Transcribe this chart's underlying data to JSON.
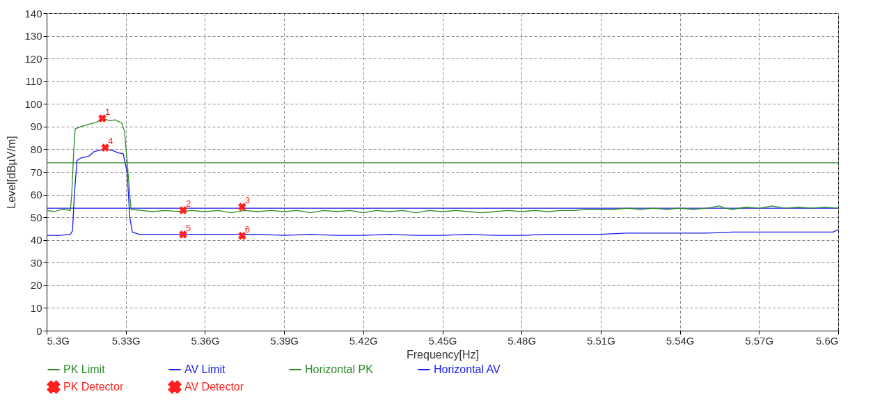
{
  "chart_data": {
    "type": "line",
    "xlabel": "Frequency[Hz]",
    "ylabel": "Level[dBµV/m]",
    "xlim": [
      5.3,
      5.6
    ],
    "ylim": [
      0,
      140
    ],
    "xticks": [
      {
        "value": 5.3,
        "label": "5.3G"
      },
      {
        "value": 5.33,
        "label": "5.33G"
      },
      {
        "value": 5.36,
        "label": "5.36G"
      },
      {
        "value": 5.39,
        "label": "5.39G"
      },
      {
        "value": 5.42,
        "label": "5.42G"
      },
      {
        "value": 5.45,
        "label": "5.45G"
      },
      {
        "value": 5.48,
        "label": "5.48G"
      },
      {
        "value": 5.51,
        "label": "5.51G"
      },
      {
        "value": 5.54,
        "label": "5.54G"
      },
      {
        "value": 5.57,
        "label": "5.57G"
      },
      {
        "value": 5.6,
        "label": "5.6G"
      }
    ],
    "yticks": [
      0,
      10,
      20,
      30,
      40,
      50,
      60,
      70,
      80,
      90,
      100,
      110,
      120,
      130,
      140
    ],
    "grid": true,
    "legend": "bottom",
    "series": [
      {
        "name": "PK Limit",
        "color": "#2a8a2a",
        "x": [
          5.3,
          5.6
        ],
        "values": [
          74,
          74
        ]
      },
      {
        "name": "AV Limit",
        "color": "#1a1aee",
        "x": [
          5.3,
          5.6
        ],
        "values": [
          54,
          54
        ]
      },
      {
        "name": "Horizontal PK",
        "color": "#2a8a2a",
        "x": [
          5.3,
          5.303,
          5.306,
          5.309,
          5.3095,
          5.3103,
          5.3108,
          5.313,
          5.316,
          5.319,
          5.3215,
          5.324,
          5.326,
          5.3285,
          5.3295,
          5.3305,
          5.3315,
          5.332,
          5.336,
          5.34,
          5.345,
          5.35,
          5.355,
          5.36,
          5.365,
          5.37,
          5.375,
          5.38,
          5.385,
          5.39,
          5.395,
          5.4,
          5.405,
          5.41,
          5.415,
          5.42,
          5.425,
          5.43,
          5.435,
          5.44,
          5.445,
          5.45,
          5.455,
          5.46,
          5.465,
          5.47,
          5.475,
          5.48,
          5.485,
          5.49,
          5.495,
          5.5,
          5.505,
          5.51,
          5.515,
          5.52,
          5.525,
          5.53,
          5.535,
          5.54,
          5.545,
          5.55,
          5.555,
          5.557,
          5.56,
          5.565,
          5.57,
          5.575,
          5.58,
          5.585,
          5.59,
          5.595,
          5.6
        ],
        "values": [
          53,
          52.5,
          53.5,
          53,
          60,
          80,
          89,
          90,
          91,
          92,
          93.5,
          92.5,
          93,
          91.5,
          88,
          75,
          60,
          53.5,
          53,
          52.5,
          53,
          52.5,
          53,
          52.5,
          53,
          52,
          53,
          52.5,
          53,
          52.5,
          53,
          52,
          53,
          52.5,
          53,
          52,
          53,
          52.5,
          53,
          52,
          53,
          52.5,
          53,
          52.5,
          52,
          52.5,
          53,
          52.5,
          53,
          52.5,
          53,
          53,
          53.5,
          53.5,
          53.5,
          54,
          53.5,
          54,
          53.5,
          54,
          53.5,
          54,
          55,
          54,
          53.5,
          54.5,
          54,
          55,
          54,
          54.5,
          54,
          54.5,
          54
        ]
      },
      {
        "name": "Horizontal AV",
        "color": "#1a1aee",
        "x": [
          5.3,
          5.305,
          5.309,
          5.3098,
          5.3105,
          5.3115,
          5.3127,
          5.316,
          5.318,
          5.322,
          5.325,
          5.327,
          5.329,
          5.3305,
          5.3315,
          5.3325,
          5.335,
          5.34,
          5.35,
          5.36,
          5.37,
          5.38,
          5.39,
          5.4,
          5.41,
          5.42,
          5.43,
          5.44,
          5.45,
          5.46,
          5.47,
          5.48,
          5.49,
          5.5,
          5.51,
          5.52,
          5.53,
          5.54,
          5.55,
          5.56,
          5.57,
          5.58,
          5.59,
          5.598,
          5.6
        ],
        "values": [
          42,
          42,
          42.5,
          44,
          60,
          75,
          76,
          77,
          79,
          80,
          79.5,
          78.5,
          78,
          70,
          50,
          43.5,
          42.5,
          42.5,
          42.5,
          42.5,
          42.5,
          42.5,
          42,
          42.5,
          42,
          42,
          42.5,
          42,
          42,
          42.5,
          42,
          42,
          42.5,
          42.5,
          42.5,
          43,
          43,
          43,
          43,
          43.5,
          43.5,
          43.5,
          43.5,
          43.5,
          44.5
        ]
      },
      {
        "name": "PK Detector",
        "type": "scatter",
        "marker": "cross",
        "color": "#ff2020",
        "x": [
          5.3211,
          5.3517,
          5.3741
        ],
        "values": [
          93.6,
          53.1,
          54.6
        ]
      },
      {
        "name": "AV Detector",
        "type": "scatter",
        "marker": "cross",
        "color": "#ff2020",
        "x": [
          5.3222,
          5.3517,
          5.3741
        ],
        "values": [
          80.7,
          42.4,
          41.8
        ]
      }
    ],
    "annotations": [
      {
        "text": "1",
        "x": 5.3211,
        "y": 93.6
      },
      {
        "text": "2",
        "x": 5.3517,
        "y": 53.1
      },
      {
        "text": "3",
        "x": 5.3741,
        "y": 54.6
      },
      {
        "text": "4",
        "x": 5.3222,
        "y": 80.7
      },
      {
        "text": "5",
        "x": 5.3517,
        "y": 42.4
      },
      {
        "text": "6",
        "x": 5.3741,
        "y": 41.8
      }
    ]
  }
}
